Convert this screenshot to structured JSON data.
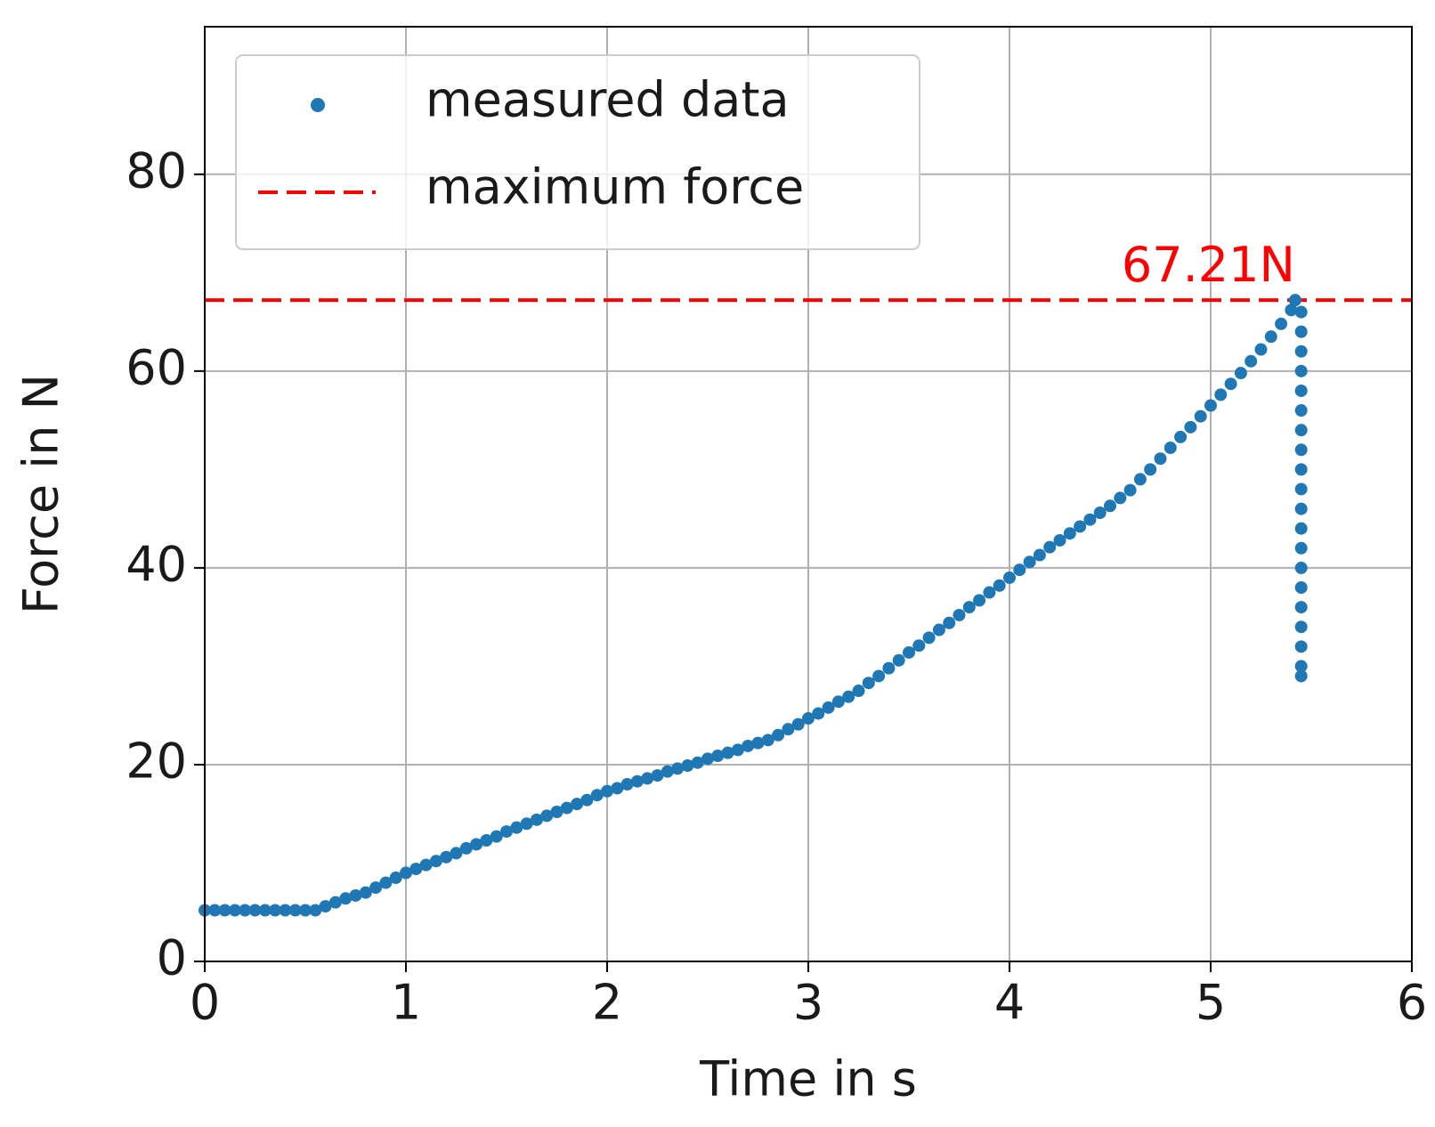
{
  "chart_data": {
    "type": "scatter",
    "xlabel": "Time in s",
    "ylabel": "Force in N",
    "xlim": [
      0,
      6
    ],
    "xticks": [
      0,
      1,
      2,
      3,
      4,
      5,
      6
    ],
    "ylim": [
      0,
      95
    ],
    "yticks": [
      0,
      20,
      40,
      60,
      80
    ],
    "grid": true,
    "legend": "upper left",
    "series": [
      {
        "name": "measured data",
        "color": "#1f77b4",
        "x": [
          0,
          0.05,
          0.1,
          0.15,
          0.2,
          0.25,
          0.3,
          0.35,
          0.4,
          0.45,
          0.5,
          0.55,
          0.6,
          0.65,
          0.7,
          0.75,
          0.8,
          0.85,
          0.9,
          0.95,
          1.0,
          1.05,
          1.1,
          1.15,
          1.2,
          1.25,
          1.3,
          1.35,
          1.4,
          1.45,
          1.5,
          1.55,
          1.6,
          1.65,
          1.7,
          1.75,
          1.8,
          1.85,
          1.9,
          1.95,
          2.0,
          2.05,
          2.1,
          2.15,
          2.2,
          2.25,
          2.3,
          2.35,
          2.4,
          2.45,
          2.5,
          2.55,
          2.6,
          2.65,
          2.7,
          2.75,
          2.8,
          2.85,
          2.9,
          2.95,
          3.0,
          3.05,
          3.1,
          3.15,
          3.2,
          3.25,
          3.3,
          3.35,
          3.4,
          3.45,
          3.5,
          3.55,
          3.6,
          3.65,
          3.7,
          3.75,
          3.8,
          3.85,
          3.9,
          3.95,
          4.0,
          4.05,
          4.1,
          4.15,
          4.2,
          4.25,
          4.3,
          4.35,
          4.4,
          4.45,
          4.5,
          4.55,
          4.6,
          4.65,
          4.7,
          4.75,
          4.8,
          4.85,
          4.9,
          4.95,
          5.0,
          5.05,
          5.1,
          5.15,
          5.2,
          5.25,
          5.3,
          5.35,
          5.4,
          5.42,
          5.45,
          5.45,
          5.45,
          5.45,
          5.45,
          5.45,
          5.45,
          5.45,
          5.45,
          5.45,
          5.45,
          5.45,
          5.45,
          5.45,
          5.45,
          5.45,
          5.45,
          5.45,
          5.45,
          5.45
        ],
        "values": [
          5.2,
          5.2,
          5.2,
          5.2,
          5.2,
          5.2,
          5.2,
          5.2,
          5.2,
          5.2,
          5.2,
          5.2,
          5.6,
          6.0,
          6.4,
          6.7,
          7.0,
          7.5,
          8.0,
          8.5,
          9.0,
          9.4,
          9.8,
          10.2,
          10.6,
          11.0,
          11.5,
          11.9,
          12.3,
          12.7,
          13.2,
          13.6,
          14.0,
          14.4,
          14.8,
          15.2,
          15.6,
          16.0,
          16.4,
          16.9,
          17.3,
          17.6,
          18.0,
          18.3,
          18.6,
          18.9,
          19.3,
          19.6,
          19.9,
          20.2,
          20.6,
          20.9,
          21.2,
          21.5,
          21.9,
          22.2,
          22.5,
          23.0,
          23.6,
          24.1,
          24.7,
          25.2,
          25.8,
          26.4,
          26.9,
          27.5,
          28.3,
          29.0,
          29.8,
          30.6,
          31.4,
          32.1,
          32.9,
          33.7,
          34.4,
          35.2,
          36.0,
          36.7,
          37.5,
          38.2,
          39.0,
          39.8,
          40.6,
          41.3,
          42.1,
          42.8,
          43.5,
          44.2,
          44.9,
          45.6,
          46.3,
          47.1,
          47.9,
          49.0,
          50.0,
          51.1,
          52.2,
          53.3,
          54.3,
          55.4,
          56.5,
          57.6,
          58.7,
          59.8,
          61.0,
          62.2,
          63.5,
          64.8,
          66.2,
          67.21,
          66,
          64,
          62,
          60,
          58,
          56,
          54,
          52,
          50,
          48,
          46,
          44,
          42,
          40,
          38,
          36,
          34,
          32,
          30,
          29
        ]
      }
    ],
    "max_force": {
      "name": "maximum force",
      "value": 67.21,
      "label": "67.21N",
      "color": "#ff0000"
    }
  }
}
